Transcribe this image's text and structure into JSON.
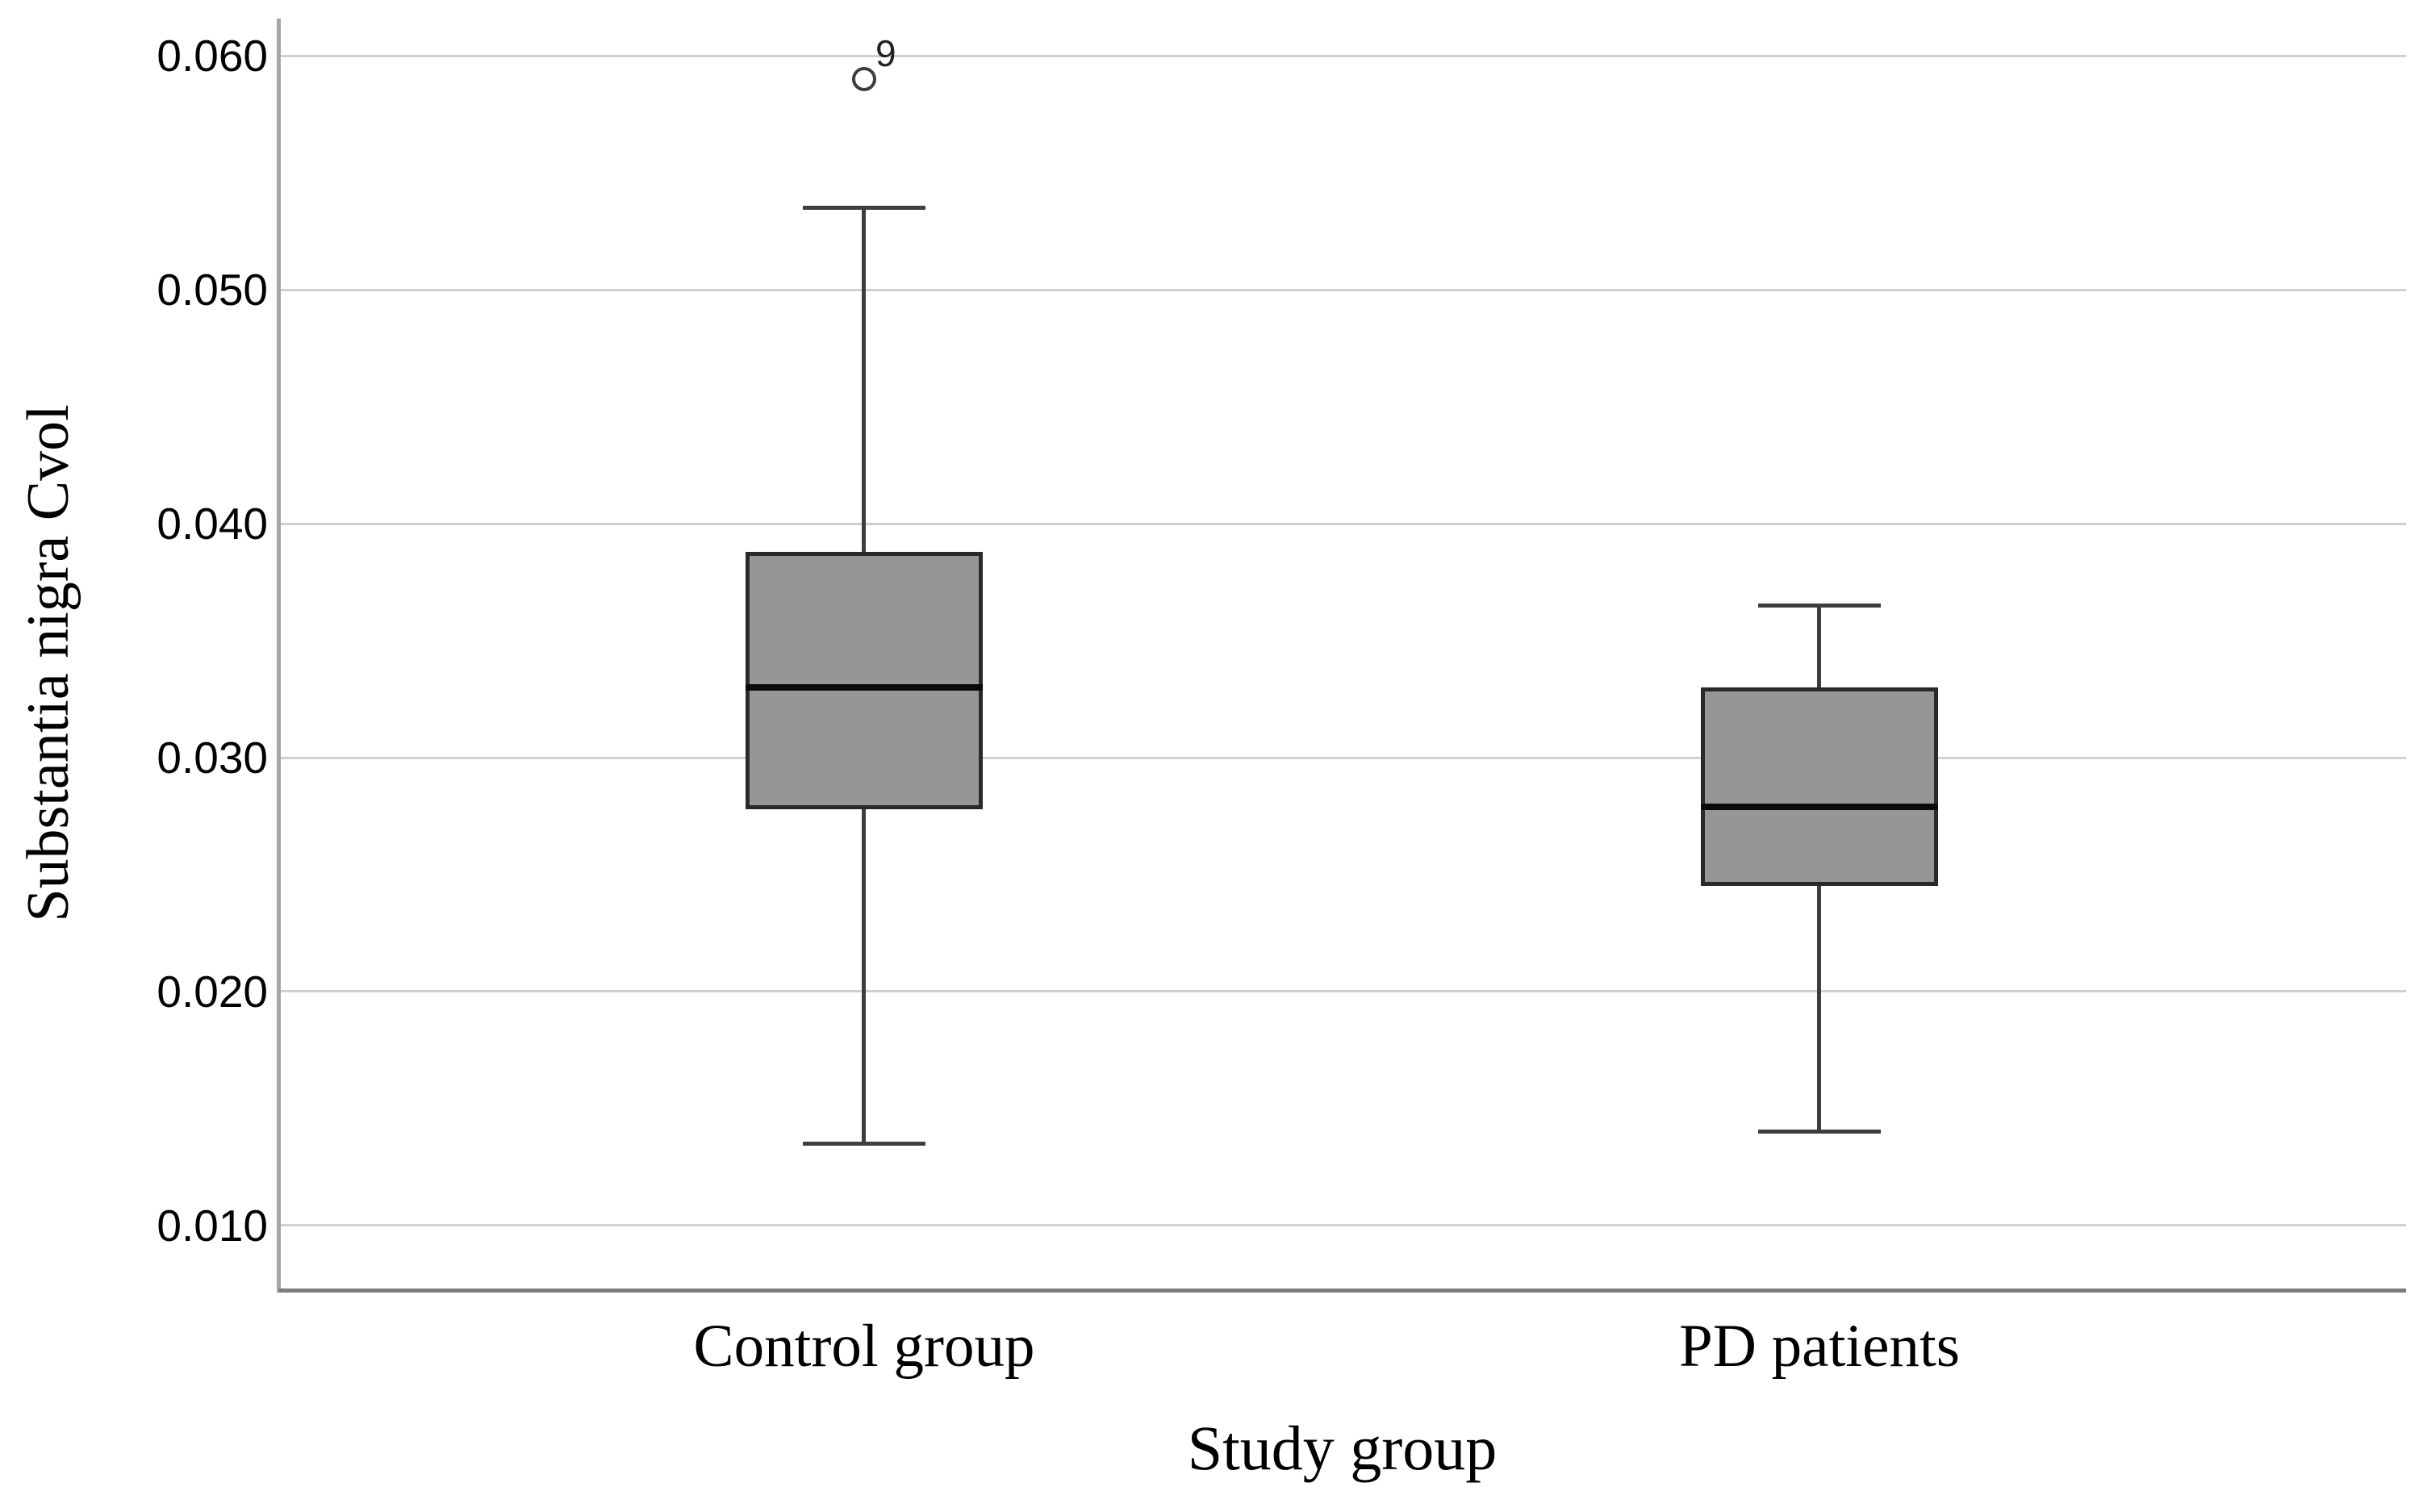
{
  "chart_data": {
    "type": "boxplot",
    "title": "",
    "xlabel": "Study group",
    "ylabel": "Substantia nigra Cvol",
    "categories": [
      "Control group",
      "PD patients"
    ],
    "ylim": [
      0.0072,
      0.0616
    ],
    "yticks": [
      0.06,
      0.05,
      0.04,
      0.03,
      0.02,
      0.01
    ],
    "ytick_labels": [
      "0.060",
      "0.050",
      "0.040",
      "0.030",
      "0.020",
      "0.010"
    ],
    "grid": true,
    "legend_position": "none",
    "series": [
      {
        "name": "Control group",
        "whisker_low": 0.0135,
        "q1": 0.0278,
        "median": 0.033,
        "q3": 0.0388,
        "whisker_high": 0.0535,
        "outliers": [
          {
            "value": 0.059,
            "label": "9"
          }
        ]
      },
      {
        "name": "PD patients",
        "whisker_low": 0.014,
        "q1": 0.0245,
        "median": 0.0279,
        "q3": 0.033,
        "whisker_high": 0.0365,
        "outliers": []
      }
    ],
    "colors": {
      "box_fill": "#969696",
      "box_border": "#2a2a2a",
      "median": "#0a0a0a",
      "whisker": "#3e3e3e",
      "gridline": "#cfcfcf",
      "axis_line": "#a6a6a6",
      "frame_bottom": "#7d7d7d",
      "text": "#000000"
    }
  }
}
